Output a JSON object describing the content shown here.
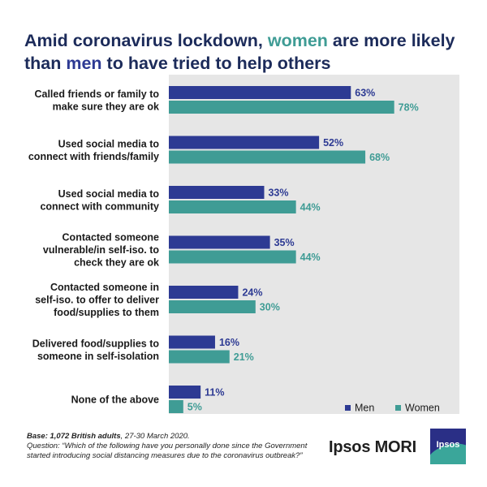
{
  "title": {
    "part1": "Amid coronavirus lockdown, ",
    "women_word": "women",
    "part2": " are more likely",
    "part3": "than ",
    "men_word": "men",
    "part4": " to have tried to help others"
  },
  "colors": {
    "men": "#2d3a93",
    "women": "#3f9c95",
    "title": "#1c2b5a",
    "plot_bg": "#e6e6e6"
  },
  "chart_data": {
    "type": "bar",
    "orientation": "horizontal",
    "categories": [
      [
        "Called friends or family to",
        "make sure they are ok"
      ],
      [
        "Used social media to",
        "connect with friends/family"
      ],
      [
        "Used social media to",
        "connect with community"
      ],
      [
        "Contacted someone",
        "vulnerable/in self-iso. to",
        "check they are ok"
      ],
      [
        "Contacted someone in",
        "self-iso. to offer to deliver",
        "food/supplies to them"
      ],
      [
        "Delivered food/supplies to",
        "someone in self-isolation"
      ],
      [
        "None of the above"
      ]
    ],
    "series": [
      {
        "name": "Men",
        "values": [
          63,
          52,
          33,
          35,
          24,
          16,
          11
        ]
      },
      {
        "name": "Women",
        "values": [
          78,
          68,
          44,
          44,
          30,
          21,
          5
        ]
      }
    ],
    "value_suffix": "%",
    "xlim": [
      0,
      100
    ],
    "grid": false,
    "legend_position": "bottom-right"
  },
  "footer": {
    "base": "Base: 1,072 British adults",
    "base_date": ", 27-30 March 2020.",
    "question": "Question: “Which of the following have you personally done since the Government started introducing social distancing measures due to the coronavirus outbreak?”"
  },
  "brand": {
    "name": "Ipsos MORI",
    "logo_text": "Ipsos"
  }
}
